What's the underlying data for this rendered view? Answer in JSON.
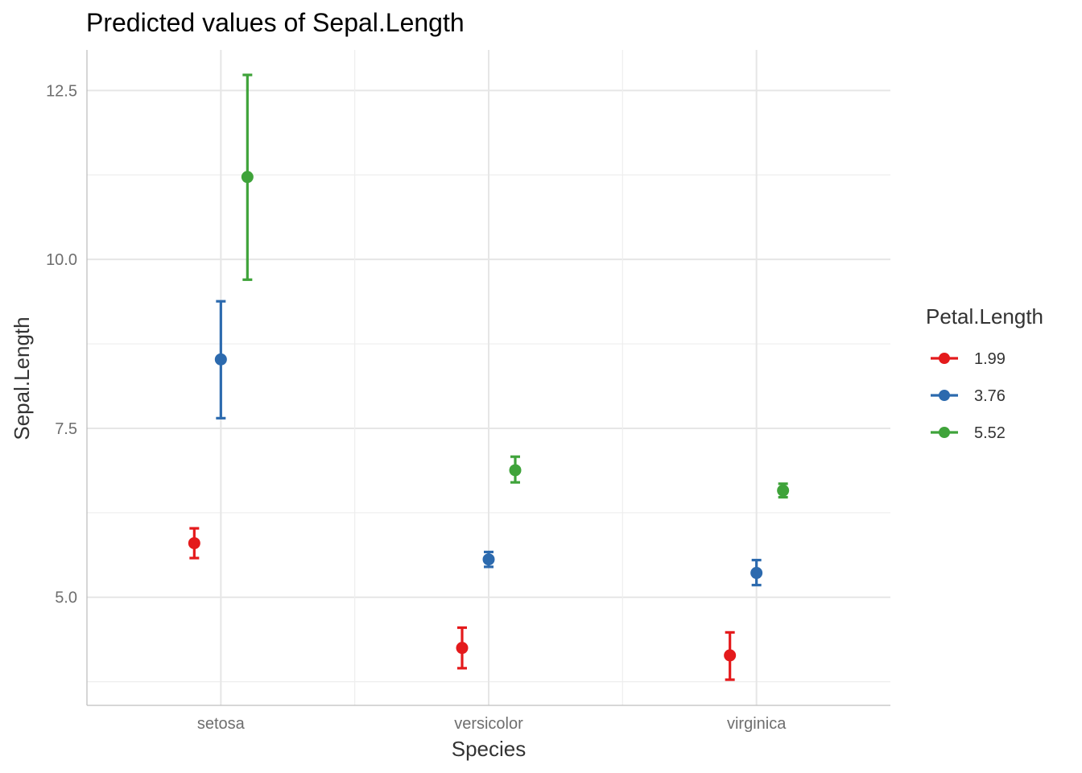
{
  "chart_data": {
    "type": "scatter",
    "title": "Predicted values of Sepal.Length",
    "xlabel": "Species",
    "ylabel": "Sepal.Length",
    "categories": [
      "setosa",
      "versicolor",
      "virginica"
    ],
    "ylim": [
      3.4,
      13.1
    ],
    "yticks": [
      5.0,
      7.5,
      10.0,
      12.5
    ],
    "ytick_labels": [
      "5.0",
      "7.5",
      "10.0",
      "12.5"
    ],
    "grid": true,
    "legend": {
      "title": "Petal.Length",
      "position": "right"
    },
    "series": [
      {
        "name": "1.99",
        "color": "#e41a1c",
        "values": [
          5.8,
          4.25,
          4.14
        ],
        "lower": [
          5.58,
          3.95,
          3.78
        ],
        "upper": [
          6.02,
          4.55,
          4.48
        ]
      },
      {
        "name": "3.76",
        "color": "#2c6aae",
        "values": [
          8.52,
          5.56,
          5.36
        ],
        "lower": [
          7.65,
          5.45,
          5.18
        ],
        "upper": [
          9.38,
          5.67,
          5.55
        ]
      },
      {
        "name": "5.52",
        "color": "#3fa33a",
        "values": [
          11.22,
          6.88,
          6.58
        ],
        "lower": [
          9.7,
          6.7,
          6.48
        ],
        "upper": [
          12.73,
          7.08,
          6.68
        ]
      }
    ]
  }
}
